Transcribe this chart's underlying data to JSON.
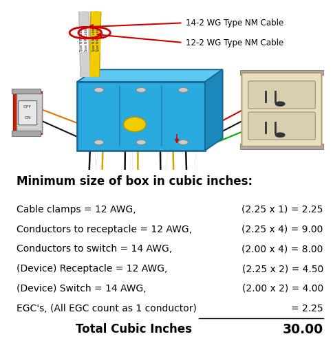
{
  "bg_color": "#ffffff",
  "title": "Minimum size of box in cubic inches:",
  "title_fontsize": 12,
  "rows": [
    {
      "left": "Cable clamps = 12 AWG,",
      "right": "(2.25 x 1) = 2.25",
      "underline_right": false
    },
    {
      "left": "Conductors to receptacle = 12 AWG,",
      "right": "(2.25 x 4) = 9.00",
      "underline_right": false
    },
    {
      "left": "Conductors to switch = 14 AWG,",
      "right": "(2.00 x 4) = 8.00",
      "underline_right": false
    },
    {
      "left": "(Device) Receptacle = 12 AWG,",
      "right": "(2.25 x 2) = 4.50",
      "underline_right": false
    },
    {
      "left": "(Device) Switch = 14 AWG,",
      "right": "(2.00 x 2) = 4.00",
      "underline_right": false
    },
    {
      "left": "EGC's, (All EGC count as 1 conductor)",
      "right": "= 2.25",
      "underline_right": true
    }
  ],
  "total_left": "Total Cubic Inches",
  "total_right": "30.00",
  "row_fontsize": 10,
  "total_fontsize": 12,
  "text_color": "#000000",
  "label1_text": "14-2 WG Type NM Cable",
  "label2_text": "12-2 WG Type NM Cable",
  "arrow_color": "#cc0000",
  "box_blue": "#29aadf",
  "box_blue_top": "#60c8f0",
  "box_blue_side": "#1a88bb",
  "box_edge": "#1a6a99",
  "cable_white": "#d0d0d0",
  "cable_yellow": "#f0cc00",
  "wire_nut_yellow": "#f0cc00",
  "switch_red": "#cc2200",
  "outlet_cream": "#e8dfc0",
  "bracket_gray": "#a8a8a8"
}
